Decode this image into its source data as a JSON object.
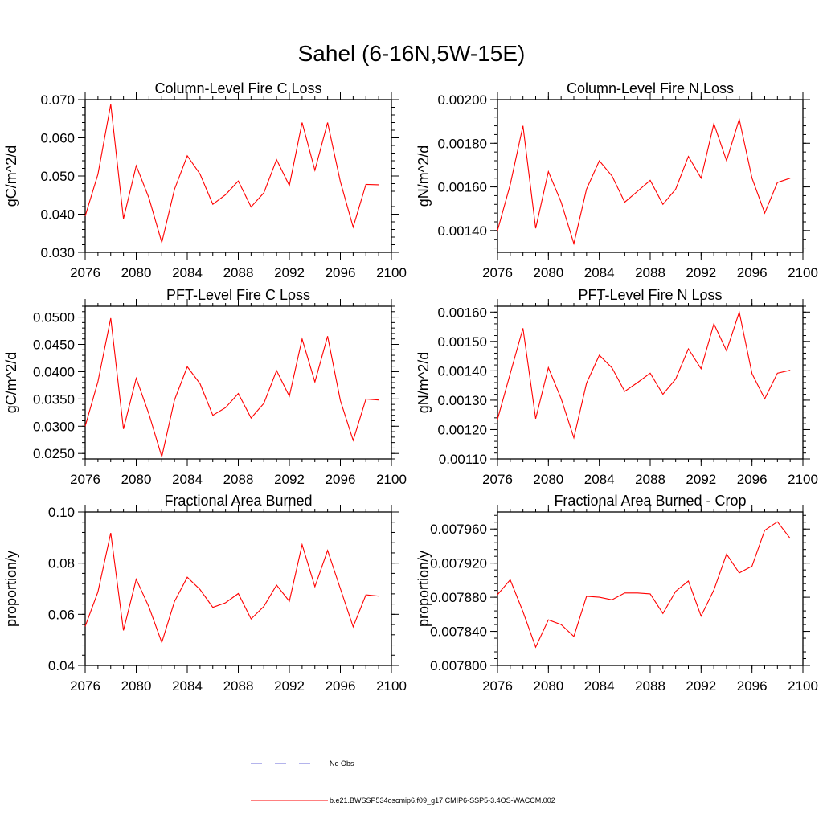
{
  "figure_title": "Sahel (6-16N,5W-15E)",
  "colors": {
    "series": "#ff0000",
    "obs": "#6a6ad8",
    "axis": "#000000"
  },
  "chart_data": [
    {
      "type": "line",
      "title": "Column-Level Fire C Loss",
      "ylabel": "gC/m^2/d",
      "xlim": [
        2076,
        2100
      ],
      "ylim": [
        0.03,
        0.07
      ],
      "xticks": [
        2076,
        2080,
        2084,
        2088,
        2092,
        2096,
        2100
      ],
      "xtick_labels": [
        "2076",
        "2080",
        "2084",
        "2088",
        "2092",
        "2096",
        "2100"
      ],
      "yticks": [
        0.03,
        0.04,
        0.05,
        0.06,
        0.07
      ],
      "ytick_labels": [
        "0.030",
        "0.040",
        "0.050",
        "0.060",
        "0.070"
      ],
      "yminor": 0.002,
      "x": [
        2076,
        2077,
        2078,
        2079,
        2080,
        2081,
        2082,
        2083,
        2084,
        2085,
        2086,
        2087,
        2088,
        2089,
        2090,
        2091,
        2092,
        2093,
        2094,
        2095,
        2096,
        2097,
        2098,
        2099
      ],
      "series": [
        {
          "name": "b.e21.BWSSP534oscmip6.f09_g17.CMIP6-SSP5-3.4OS-WACCM.002",
          "values": [
            0.0395,
            0.0505,
            0.0688,
            0.0388,
            0.0527,
            0.0442,
            0.0326,
            0.0465,
            0.0553,
            0.0505,
            0.0426,
            0.0451,
            0.0487,
            0.0419,
            0.0456,
            0.0543,
            0.0475,
            0.064,
            0.0515,
            0.064,
            0.0485,
            0.0366,
            0.0478,
            0.0477
          ]
        }
      ]
    },
    {
      "type": "line",
      "title": "Column-Level Fire N Loss",
      "ylabel": "gN/m^2/d",
      "xlim": [
        2076,
        2100
      ],
      "ylim": [
        0.0013,
        0.002
      ],
      "xticks": [
        2076,
        2080,
        2084,
        2088,
        2092,
        2096,
        2100
      ],
      "xtick_labels": [
        "2076",
        "2080",
        "2084",
        "2088",
        "2092",
        "2096",
        "2100"
      ],
      "yticks": [
        0.0014,
        0.0016,
        0.0018,
        0.002
      ],
      "ytick_labels": [
        "0.00140",
        "0.00160",
        "0.00180",
        "0.00200"
      ],
      "yminor": 4e-05,
      "x": [
        2076,
        2077,
        2078,
        2079,
        2080,
        2081,
        2082,
        2083,
        2084,
        2085,
        2086,
        2087,
        2088,
        2089,
        2090,
        2091,
        2092,
        2093,
        2094,
        2095,
        2096,
        2097,
        2098,
        2099
      ],
      "series": [
        {
          "name": "b.e21.BWSSP534oscmip6.f09_g17.CMIP6-SSP5-3.4OS-WACCM.002",
          "values": [
            0.0014,
            0.00161,
            0.00188,
            0.00141,
            0.00167,
            0.00153,
            0.00134,
            0.00159,
            0.00172,
            0.00165,
            0.00153,
            0.00158,
            0.00163,
            0.00152,
            0.00159,
            0.00174,
            0.00164,
            0.00189,
            0.00172,
            0.00191,
            0.00164,
            0.00148,
            0.00162,
            0.00164
          ]
        }
      ]
    },
    {
      "type": "line",
      "title": "PFT-Level Fire C Loss",
      "ylabel": "gC/m^2/d",
      "xlim": [
        2076,
        2100
      ],
      "ylim": [
        0.024,
        0.052
      ],
      "xticks": [
        2076,
        2080,
        2084,
        2088,
        2092,
        2096,
        2100
      ],
      "xtick_labels": [
        "2076",
        "2080",
        "2084",
        "2088",
        "2092",
        "2096",
        "2100"
      ],
      "yticks": [
        0.025,
        0.03,
        0.035,
        0.04,
        0.045,
        0.05
      ],
      "ytick_labels": [
        "0.0250",
        "0.0300",
        "0.0350",
        "0.0400",
        "0.0450",
        "0.0500"
      ],
      "yminor": 0.001,
      "x": [
        2076,
        2077,
        2078,
        2079,
        2080,
        2081,
        2082,
        2083,
        2084,
        2085,
        2086,
        2087,
        2088,
        2089,
        2090,
        2091,
        2092,
        2093,
        2094,
        2095,
        2096,
        2097,
        2098,
        2099
      ],
      "series": [
        {
          "name": "b.e21.BWSSP534oscmip6.f09_g17.CMIP6-SSP5-3.4OS-WACCM.002",
          "values": [
            0.03,
            0.0382,
            0.0498,
            0.0295,
            0.0388,
            0.0322,
            0.0244,
            0.0348,
            0.0409,
            0.0378,
            0.032,
            0.0334,
            0.036,
            0.0315,
            0.0342,
            0.0402,
            0.0355,
            0.046,
            0.0381,
            0.0465,
            0.0347,
            0.0274,
            0.035,
            0.0348
          ]
        }
      ]
    },
    {
      "type": "line",
      "title": "PFT-Level Fire N Loss",
      "ylabel": "gN/m^2/d",
      "xlim": [
        2076,
        2100
      ],
      "ylim": [
        0.0011,
        0.00162
      ],
      "xticks": [
        2076,
        2080,
        2084,
        2088,
        2092,
        2096,
        2100
      ],
      "xtick_labels": [
        "2076",
        "2080",
        "2084",
        "2088",
        "2092",
        "2096",
        "2100"
      ],
      "yticks": [
        0.0011,
        0.0012,
        0.0013,
        0.0014,
        0.0015,
        0.0016
      ],
      "ytick_labels": [
        "0.00110",
        "0.00120",
        "0.00130",
        "0.00140",
        "0.00150",
        "0.00160"
      ],
      "yminor": 2e-05,
      "x": [
        2076,
        2077,
        2078,
        2079,
        2080,
        2081,
        2082,
        2083,
        2084,
        2085,
        2086,
        2087,
        2088,
        2089,
        2090,
        2091,
        2092,
        2093,
        2094,
        2095,
        2096,
        2097,
        2098,
        2099
      ],
      "series": [
        {
          "name": "b.e21.BWSSP534oscmip6.f09_g17.CMIP6-SSP5-3.4OS-WACCM.002",
          "values": [
            0.001235,
            0.00139,
            0.001545,
            0.001237,
            0.001411,
            0.001305,
            0.001172,
            0.001358,
            0.001453,
            0.00141,
            0.00133,
            0.00136,
            0.001392,
            0.00132,
            0.001372,
            0.001475,
            0.001407,
            0.00156,
            0.001468,
            0.0016,
            0.00139,
            0.001305,
            0.001392,
            0.001402
          ]
        }
      ]
    },
    {
      "type": "line",
      "title": "Fractional Area Burned",
      "ylabel": "proportion/y",
      "xlim": [
        2076,
        2100
      ],
      "ylim": [
        0.04,
        0.1
      ],
      "xticks": [
        2076,
        2080,
        2084,
        2088,
        2092,
        2096,
        2100
      ],
      "xtick_labels": [
        "2076",
        "2080",
        "2084",
        "2088",
        "2092",
        "2096",
        "2100"
      ],
      "yticks": [
        0.04,
        0.06,
        0.08,
        0.1
      ],
      "ytick_labels": [
        "0.04",
        "0.06",
        "0.08",
        "0.10"
      ],
      "yminor": 0.004,
      "x": [
        2076,
        2077,
        2078,
        2079,
        2080,
        2081,
        2082,
        2083,
        2084,
        2085,
        2086,
        2087,
        2088,
        2089,
        2090,
        2091,
        2092,
        2093,
        2094,
        2095,
        2096,
        2097,
        2098,
        2099
      ],
      "series": [
        {
          "name": "b.e21.BWSSP534oscmip6.f09_g17.CMIP6-SSP5-3.4OS-WACCM.002",
          "values": [
            0.0553,
            0.0688,
            0.0918,
            0.0537,
            0.0737,
            0.0628,
            0.049,
            0.065,
            0.0745,
            0.0697,
            0.0627,
            0.0645,
            0.0681,
            0.0582,
            0.0631,
            0.0714,
            0.0651,
            0.0872,
            0.0708,
            0.085,
            0.07,
            0.0551,
            0.0676,
            0.0671
          ]
        }
      ]
    },
    {
      "type": "line",
      "title": "Fractional Area Burned - Crop",
      "ylabel": "proportion/y",
      "xlim": [
        2076,
        2100
      ],
      "ylim": [
        0.0078,
        0.00798
      ],
      "xticks": [
        2076,
        2080,
        2084,
        2088,
        2092,
        2096,
        2100
      ],
      "xtick_labels": [
        "2076",
        "2080",
        "2084",
        "2088",
        "2092",
        "2096",
        "2100"
      ],
      "yticks": [
        0.0078,
        0.00784,
        0.00788,
        0.00792,
        0.00796
      ],
      "ytick_labels": [
        "0.007800",
        "0.007840",
        "0.007880",
        "0.007920",
        "0.007960"
      ],
      "yminor": 8e-06,
      "x": [
        2076,
        2077,
        2078,
        2079,
        2080,
        2081,
        2082,
        2083,
        2084,
        2085,
        2086,
        2087,
        2088,
        2089,
        2090,
        2091,
        2092,
        2093,
        2094,
        2095,
        2096,
        2097,
        2098,
        2099
      ],
      "series": [
        {
          "name": "b.e21.BWSSP534oscmip6.f09_g17.CMIP6-SSP5-3.4OS-WACCM.002",
          "values": [
            0.007883,
            0.0079005,
            0.007863,
            0.0078215,
            0.0078535,
            0.007848,
            0.007834,
            0.007881,
            0.00788,
            0.007877,
            0.007885,
            0.007885,
            0.007884,
            0.007861,
            0.007887,
            0.007899,
            0.007858,
            0.0078885,
            0.0079305,
            0.0079085,
            0.0079165,
            0.0079585,
            0.0079685,
            0.007949
          ]
        }
      ]
    }
  ],
  "legend": [
    {
      "label": "No Obs",
      "style": "dashed",
      "color": "#6a6ad8"
    },
    {
      "label": "b.e21.BWSSP534oscmip6.f09_g17.CMIP6-SSP5-3.4OS-WACCM.002",
      "style": "solid",
      "color": "#ff0000"
    }
  ]
}
